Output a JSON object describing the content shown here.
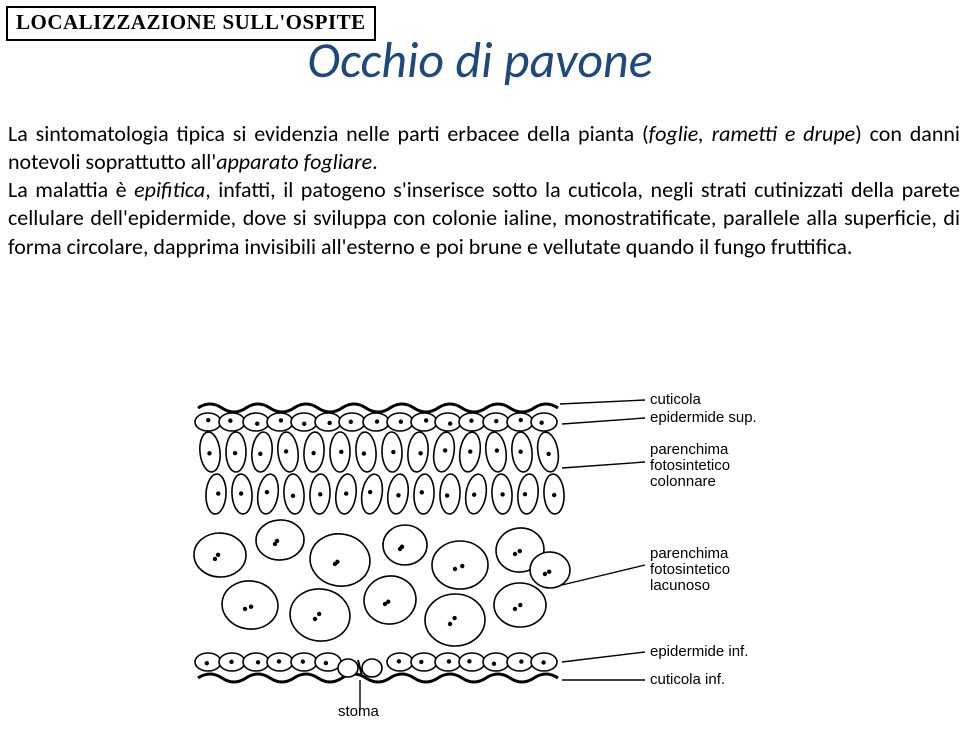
{
  "header": {
    "label": "LOCALIZZAZIONE SULL'OSPITE"
  },
  "title": "Occhio di pavone",
  "paragraph": {
    "p1a": "La sintomatologia tipica si evidenzia nelle parti erbacee della pianta (",
    "p1b": "foglie, rametti e drupe",
    "p1c": ") con danni notevoli soprattutto all'",
    "p1d": "apparato fogliare",
    "p1e": ".",
    "p2a": "La malattia è ",
    "p2b": "epifitica",
    "p2c": ", infatti, il patogeno s'inserisce sotto la cuticola, negli strati cutinizzati della parete cellulare dell'epidermide, dove si sviluppa con colonie ialine, monostratificate, parallele alla superficie, di forma circolare, dapprima invisibili all'esterno e poi brune e vellutate quando il fungo fruttifica."
  },
  "diagram": {
    "labels": {
      "cuticola": "cuticola",
      "epidermide_sup": "epidermide sup.",
      "parenchima_colonnare_l1": "parenchima",
      "parenchima_colonnare_l2": "fotosintetico",
      "parenchima_colonnare_l3": "colonnare",
      "parenchima_lacunoso_l1": "parenchima",
      "parenchima_lacunoso_l2": "fotosintetico",
      "parenchima_lacunoso_l3": "lacunoso",
      "epidermide_inf": "epidermide inf.",
      "cuticola_inf": "cuticola inf.",
      "stoma": "stoma"
    },
    "colors": {
      "stroke": "#000000",
      "fill": "#ffffff",
      "bg": "#ffffff"
    },
    "stroke_width": 1.6
  }
}
